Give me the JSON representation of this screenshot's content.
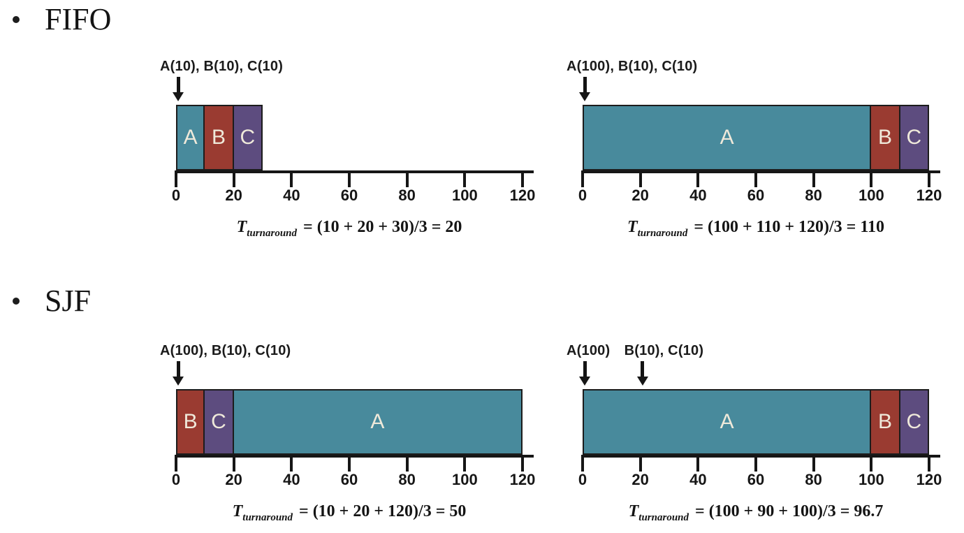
{
  "page": {
    "background": "#ffffff"
  },
  "colors": {
    "job_a": "#488a9c",
    "job_b": "#9a3b31",
    "job_c": "#5d4c7f",
    "axis": "#161616",
    "bar_label_text": "#efe9da",
    "text": "#1b1b1b"
  },
  "icons": {
    "section_marker": "bullet-dot",
    "arrival_marker": "arrow-down"
  },
  "sections": [
    {
      "title": "FIFO",
      "bullet": "•"
    },
    {
      "title": "SJF",
      "bullet": "•"
    }
  ],
  "chart_data": [
    {
      "type": "bar",
      "section": "FIFO",
      "title": "FIFO: three equal-length jobs",
      "arrival_label_parts": [
        "A(10), B(10), C(10)"
      ],
      "arrival_arrow_times": [
        0
      ],
      "segments": [
        {
          "job": "A",
          "start": 0,
          "end": 10
        },
        {
          "job": "B",
          "start": 10,
          "end": 20
        },
        {
          "job": "C",
          "start": 20,
          "end": 30
        }
      ],
      "axis": {
        "min": 0,
        "max": 120,
        "tick_step": 20,
        "ticks": [
          0,
          20,
          40,
          60,
          80,
          100,
          120
        ]
      },
      "formula": {
        "variable": "T",
        "subscript": "turnaround",
        "expression": "= (10 + 20 + 30)/3 = 20"
      },
      "turnaround_average": 20
    },
    {
      "type": "bar",
      "section": "FIFO",
      "title": "FIFO: long job A first (convoy effect)",
      "arrival_label_parts": [
        "A(100), B(10), C(10)"
      ],
      "arrival_arrow_times": [
        0
      ],
      "segments": [
        {
          "job": "A",
          "start": 0,
          "end": 100
        },
        {
          "job": "B",
          "start": 100,
          "end": 110
        },
        {
          "job": "C",
          "start": 110,
          "end": 120
        }
      ],
      "axis": {
        "min": 0,
        "max": 120,
        "tick_step": 20,
        "ticks": [
          0,
          20,
          40,
          60,
          80,
          100,
          120
        ]
      },
      "formula": {
        "variable": "T",
        "subscript": "turnaround",
        "expression": "= (100 + 110 + 120)/3 = 110"
      },
      "turnaround_average": 110
    },
    {
      "type": "bar",
      "section": "SJF",
      "title": "SJF: all jobs arrive at time 0",
      "arrival_label_parts": [
        "A(100), B(10), C(10)"
      ],
      "arrival_arrow_times": [
        0
      ],
      "segments": [
        {
          "job": "B",
          "start": 0,
          "end": 10
        },
        {
          "job": "C",
          "start": 10,
          "end": 20
        },
        {
          "job": "A",
          "start": 20,
          "end": 120
        }
      ],
      "axis": {
        "min": 0,
        "max": 120,
        "tick_step": 20,
        "ticks": [
          0,
          20,
          40,
          60,
          80,
          100,
          120
        ]
      },
      "formula": {
        "variable": "T",
        "subscript": "turnaround",
        "expression": "= (10 + 20 + 120)/3 = 50"
      },
      "turnaround_average": 50
    },
    {
      "type": "bar",
      "section": "SJF",
      "title": "SJF: B and C arrive at time 20",
      "arrival_label_parts": [
        "A(100)",
        "B(10), C(10)"
      ],
      "arrival_arrow_times": [
        0,
        20
      ],
      "segments": [
        {
          "job": "A",
          "start": 0,
          "end": 100
        },
        {
          "job": "B",
          "start": 100,
          "end": 110
        },
        {
          "job": "C",
          "start": 110,
          "end": 120
        }
      ],
      "axis": {
        "min": 0,
        "max": 120,
        "tick_step": 20,
        "ticks": [
          0,
          20,
          40,
          60,
          80,
          100,
          120
        ]
      },
      "formula": {
        "variable": "T",
        "subscript": "turnaround",
        "expression": "= (100 + 90 + 100)/3 = 96.7"
      },
      "turnaround_average": 96.7
    }
  ]
}
